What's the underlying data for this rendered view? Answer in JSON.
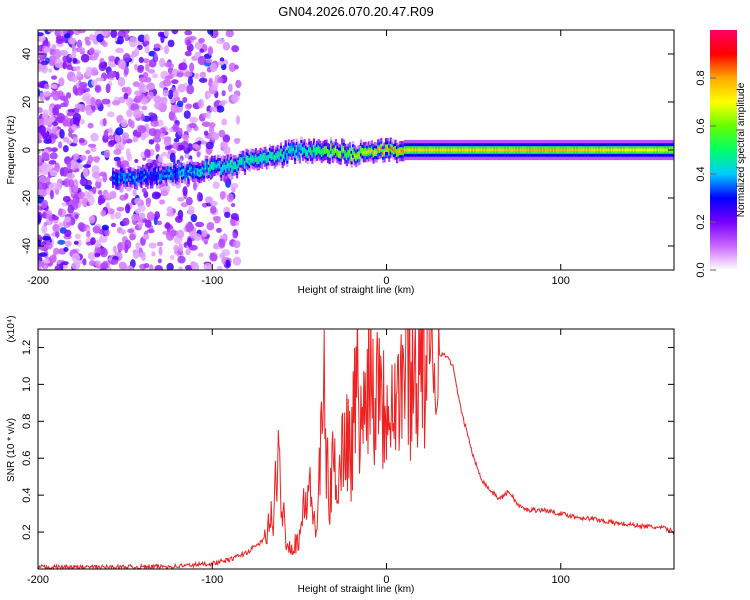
{
  "title": "GN04.2026.070.20.47.R09",
  "chart_data": [
    {
      "type": "heatmap",
      "xlabel": "Height of straight line (km)",
      "ylabel": "Frequency (Hz)",
      "xlim": [
        -200,
        165
      ],
      "ylim": [
        -50,
        50
      ],
      "x_ticks": [
        "-200",
        "-100",
        "0",
        "100"
      ],
      "y_ticks": [
        "-40",
        "-20",
        "0",
        "20",
        "40"
      ],
      "colorbar": {
        "label": "Normalized spectral amplitude",
        "range": [
          0,
          1
        ],
        "ticks": [
          "0.0",
          "0.2",
          "0.4",
          "0.6",
          "0.8"
        ],
        "colors": [
          "#ffffff",
          "#cc66ff",
          "#7700ff",
          "#0000ff",
          "#00ccff",
          "#00ff66",
          "#66ff00",
          "#ffff00",
          "#ffaa00",
          "#ff0000",
          "#ff0066"
        ]
      },
      "ridge": [
        {
          "x": -157,
          "f": -12,
          "amp": 0.35
        },
        {
          "x": -145,
          "f": -11,
          "amp": 0.35
        },
        {
          "x": -135,
          "f": -11,
          "amp": 0.3
        },
        {
          "x": -120,
          "f": -9,
          "amp": 0.35
        },
        {
          "x": -105,
          "f": -8,
          "amp": 0.4
        },
        {
          "x": -90,
          "f": -7,
          "amp": 0.45
        },
        {
          "x": -75,
          "f": -4,
          "amp": 0.45
        },
        {
          "x": -60,
          "f": -2,
          "amp": 0.45
        },
        {
          "x": -50,
          "f": 0,
          "amp": 0.4
        },
        {
          "x": -40,
          "f": -1,
          "amp": 0.5
        },
        {
          "x": -30,
          "f": 0,
          "amp": 0.6
        },
        {
          "x": -20,
          "f": -2,
          "amp": 0.6
        },
        {
          "x": -10,
          "f": 0,
          "amp": 0.7
        },
        {
          "x": 0,
          "f": 0,
          "amp": 0.8
        },
        {
          "x": 10,
          "f": 0,
          "amp": 0.75
        },
        {
          "x": 30,
          "f": 0,
          "amp": 0.75
        },
        {
          "x": 60,
          "f": 0,
          "amp": 0.75
        },
        {
          "x": 90,
          "f": 0,
          "amp": 0.8
        },
        {
          "x": 120,
          "f": 0,
          "amp": 0.75
        },
        {
          "x": 150,
          "f": 0,
          "amp": 0.7
        },
        {
          "x": 165,
          "f": 0,
          "amp": 0.65
        }
      ]
    },
    {
      "type": "line",
      "xlabel": "Height of straight line (km)",
      "ylabel": "SNR (10 * v/v)",
      "y_multiplier": "(x10⁴)",
      "xlim": [
        -200,
        165
      ],
      "ylim": [
        0,
        1.3
      ],
      "x_ticks": [
        "-200",
        "-100",
        "0",
        "100"
      ],
      "y_ticks": [
        "0.2",
        "0.4",
        "0.6",
        "0.8",
        "1.0",
        "1.2"
      ],
      "series": [
        {
          "name": "SNR",
          "color": "#ee2222",
          "x": [
            -200,
            -150,
            -120,
            -100,
            -90,
            -80,
            -70,
            -65,
            -62,
            -58,
            -55,
            -50,
            -45,
            -40,
            -36,
            -33,
            -30,
            -27,
            -24,
            -20,
            -17,
            -14,
            -10,
            -7,
            -4,
            -2,
            0,
            3,
            6,
            10,
            15,
            20,
            25,
            30,
            35,
            38,
            40,
            43,
            46,
            50,
            55,
            60,
            65,
            70,
            72,
            75,
            80,
            90,
            100,
            110,
            120,
            130,
            140,
            150,
            160,
            165
          ],
          "y": [
            0.01,
            0.01,
            0.015,
            0.03,
            0.05,
            0.09,
            0.16,
            0.3,
            0.55,
            0.2,
            0.1,
            0.18,
            0.45,
            0.2,
            0.95,
            0.35,
            0.6,
            0.5,
            0.75,
            0.65,
            1.05,
            0.7,
            1.2,
            0.9,
            1.25,
            0.85,
            0.95,
            1.05,
            0.9,
            1.1,
            1.05,
            1.15,
            1.08,
            1.17,
            1.15,
            1.1,
            1.0,
            0.85,
            0.75,
            0.6,
            0.48,
            0.42,
            0.38,
            0.42,
            0.4,
            0.35,
            0.32,
            0.32,
            0.3,
            0.28,
            0.27,
            0.25,
            0.24,
            0.23,
            0.22,
            0.2
          ]
        }
      ]
    }
  ]
}
